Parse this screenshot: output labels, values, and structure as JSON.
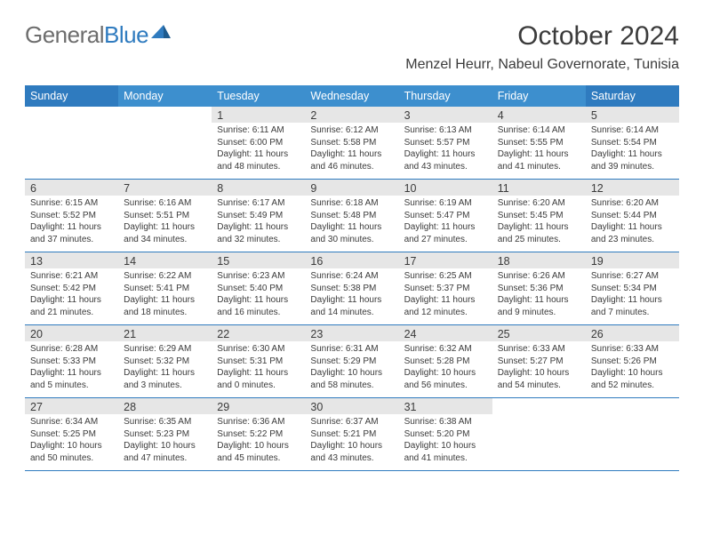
{
  "logo": {
    "text_general": "General",
    "text_blue": "Blue"
  },
  "title": "October 2024",
  "location": "Menzel Heurr, Nabeul Governorate, Tunisia",
  "header_bg": "#3d8fce",
  "header_dark_bg": "#2f7bbf",
  "day_headers": [
    "Sunday",
    "Monday",
    "Tuesday",
    "Wednesday",
    "Thursday",
    "Friday",
    "Saturday"
  ],
  "weeks": [
    [
      null,
      null,
      {
        "n": "1",
        "sr": "Sunrise: 6:11 AM",
        "ss": "Sunset: 6:00 PM",
        "dl1": "Daylight: 11 hours",
        "dl2": "and 48 minutes."
      },
      {
        "n": "2",
        "sr": "Sunrise: 6:12 AM",
        "ss": "Sunset: 5:58 PM",
        "dl1": "Daylight: 11 hours",
        "dl2": "and 46 minutes."
      },
      {
        "n": "3",
        "sr": "Sunrise: 6:13 AM",
        "ss": "Sunset: 5:57 PM",
        "dl1": "Daylight: 11 hours",
        "dl2": "and 43 minutes."
      },
      {
        "n": "4",
        "sr": "Sunrise: 6:14 AM",
        "ss": "Sunset: 5:55 PM",
        "dl1": "Daylight: 11 hours",
        "dl2": "and 41 minutes."
      },
      {
        "n": "5",
        "sr": "Sunrise: 6:14 AM",
        "ss": "Sunset: 5:54 PM",
        "dl1": "Daylight: 11 hours",
        "dl2": "and 39 minutes."
      }
    ],
    [
      {
        "n": "6",
        "sr": "Sunrise: 6:15 AM",
        "ss": "Sunset: 5:52 PM",
        "dl1": "Daylight: 11 hours",
        "dl2": "and 37 minutes."
      },
      {
        "n": "7",
        "sr": "Sunrise: 6:16 AM",
        "ss": "Sunset: 5:51 PM",
        "dl1": "Daylight: 11 hours",
        "dl2": "and 34 minutes."
      },
      {
        "n": "8",
        "sr": "Sunrise: 6:17 AM",
        "ss": "Sunset: 5:49 PM",
        "dl1": "Daylight: 11 hours",
        "dl2": "and 32 minutes."
      },
      {
        "n": "9",
        "sr": "Sunrise: 6:18 AM",
        "ss": "Sunset: 5:48 PM",
        "dl1": "Daylight: 11 hours",
        "dl2": "and 30 minutes."
      },
      {
        "n": "10",
        "sr": "Sunrise: 6:19 AM",
        "ss": "Sunset: 5:47 PM",
        "dl1": "Daylight: 11 hours",
        "dl2": "and 27 minutes."
      },
      {
        "n": "11",
        "sr": "Sunrise: 6:20 AM",
        "ss": "Sunset: 5:45 PM",
        "dl1": "Daylight: 11 hours",
        "dl2": "and 25 minutes."
      },
      {
        "n": "12",
        "sr": "Sunrise: 6:20 AM",
        "ss": "Sunset: 5:44 PM",
        "dl1": "Daylight: 11 hours",
        "dl2": "and 23 minutes."
      }
    ],
    [
      {
        "n": "13",
        "sr": "Sunrise: 6:21 AM",
        "ss": "Sunset: 5:42 PM",
        "dl1": "Daylight: 11 hours",
        "dl2": "and 21 minutes."
      },
      {
        "n": "14",
        "sr": "Sunrise: 6:22 AM",
        "ss": "Sunset: 5:41 PM",
        "dl1": "Daylight: 11 hours",
        "dl2": "and 18 minutes."
      },
      {
        "n": "15",
        "sr": "Sunrise: 6:23 AM",
        "ss": "Sunset: 5:40 PM",
        "dl1": "Daylight: 11 hours",
        "dl2": "and 16 minutes."
      },
      {
        "n": "16",
        "sr": "Sunrise: 6:24 AM",
        "ss": "Sunset: 5:38 PM",
        "dl1": "Daylight: 11 hours",
        "dl2": "and 14 minutes."
      },
      {
        "n": "17",
        "sr": "Sunrise: 6:25 AM",
        "ss": "Sunset: 5:37 PM",
        "dl1": "Daylight: 11 hours",
        "dl2": "and 12 minutes."
      },
      {
        "n": "18",
        "sr": "Sunrise: 6:26 AM",
        "ss": "Sunset: 5:36 PM",
        "dl1": "Daylight: 11 hours",
        "dl2": "and 9 minutes."
      },
      {
        "n": "19",
        "sr": "Sunrise: 6:27 AM",
        "ss": "Sunset: 5:34 PM",
        "dl1": "Daylight: 11 hours",
        "dl2": "and 7 minutes."
      }
    ],
    [
      {
        "n": "20",
        "sr": "Sunrise: 6:28 AM",
        "ss": "Sunset: 5:33 PM",
        "dl1": "Daylight: 11 hours",
        "dl2": "and 5 minutes."
      },
      {
        "n": "21",
        "sr": "Sunrise: 6:29 AM",
        "ss": "Sunset: 5:32 PM",
        "dl1": "Daylight: 11 hours",
        "dl2": "and 3 minutes."
      },
      {
        "n": "22",
        "sr": "Sunrise: 6:30 AM",
        "ss": "Sunset: 5:31 PM",
        "dl1": "Daylight: 11 hours",
        "dl2": "and 0 minutes."
      },
      {
        "n": "23",
        "sr": "Sunrise: 6:31 AM",
        "ss": "Sunset: 5:29 PM",
        "dl1": "Daylight: 10 hours",
        "dl2": "and 58 minutes."
      },
      {
        "n": "24",
        "sr": "Sunrise: 6:32 AM",
        "ss": "Sunset: 5:28 PM",
        "dl1": "Daylight: 10 hours",
        "dl2": "and 56 minutes."
      },
      {
        "n": "25",
        "sr": "Sunrise: 6:33 AM",
        "ss": "Sunset: 5:27 PM",
        "dl1": "Daylight: 10 hours",
        "dl2": "and 54 minutes."
      },
      {
        "n": "26",
        "sr": "Sunrise: 6:33 AM",
        "ss": "Sunset: 5:26 PM",
        "dl1": "Daylight: 10 hours",
        "dl2": "and 52 minutes."
      }
    ],
    [
      {
        "n": "27",
        "sr": "Sunrise: 6:34 AM",
        "ss": "Sunset: 5:25 PM",
        "dl1": "Daylight: 10 hours",
        "dl2": "and 50 minutes."
      },
      {
        "n": "28",
        "sr": "Sunrise: 6:35 AM",
        "ss": "Sunset: 5:23 PM",
        "dl1": "Daylight: 10 hours",
        "dl2": "and 47 minutes."
      },
      {
        "n": "29",
        "sr": "Sunrise: 6:36 AM",
        "ss": "Sunset: 5:22 PM",
        "dl1": "Daylight: 10 hours",
        "dl2": "and 45 minutes."
      },
      {
        "n": "30",
        "sr": "Sunrise: 6:37 AM",
        "ss": "Sunset: 5:21 PM",
        "dl1": "Daylight: 10 hours",
        "dl2": "and 43 minutes."
      },
      {
        "n": "31",
        "sr": "Sunrise: 6:38 AM",
        "ss": "Sunset: 5:20 PM",
        "dl1": "Daylight: 10 hours",
        "dl2": "and 41 minutes."
      },
      null,
      null
    ]
  ]
}
